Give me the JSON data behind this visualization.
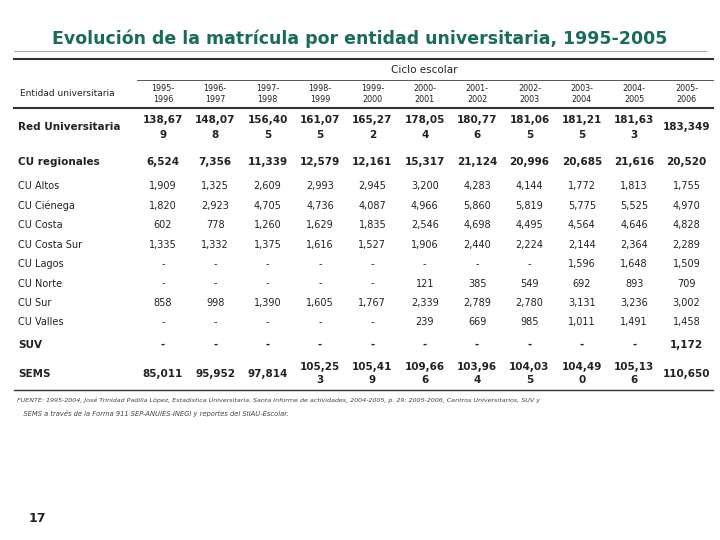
{
  "title": "Evolución de la matrícula por entidad universitaria, 1995-2005",
  "header_ciclo": "Ciclo escolar",
  "header_entidad": "Entidad universitaria",
  "col_headers": [
    "1995-\n1996",
    "1996-\n1997",
    "1997-\n1998",
    "1998-\n1999",
    "1999-\n2000",
    "2000-\n2001",
    "2001-\n2002",
    "2002-\n2003",
    "2003-\n2004",
    "2004-\n2005",
    "2005-\n2006"
  ],
  "rows": [
    {
      "name": "Red Universitaria",
      "bold": true,
      "values": [
        "138,67\n9",
        "148,07\n8",
        "156,40\n5",
        "161,07\n5",
        "165,27\n2",
        "178,05\n4",
        "180,77\n6",
        "181,06\n5",
        "181,21\n5",
        "181,63\n3",
        "183,349"
      ]
    },
    {
      "name": "CU regionales",
      "bold": true,
      "values": [
        "6,524",
        "7,356",
        "11,339",
        "12,579",
        "12,161",
        "15,317",
        "21,124",
        "20,996",
        "20,685",
        "21,616",
        "20,520"
      ]
    },
    {
      "name": "CU Altos",
      "bold": false,
      "values": [
        "1,909",
        "1,325",
        "2,609",
        "2,993",
        "2,945",
        "3,200",
        "4,283",
        "4,144",
        "1,772",
        "1,813",
        "1,755"
      ]
    },
    {
      "name": "CU Ciénega",
      "bold": false,
      "values": [
        "1,820",
        "2,923",
        "4,705",
        "4,736",
        "4,087",
        "4,966",
        "5,860",
        "5,819",
        "5,775",
        "5,525",
        "4,970"
      ]
    },
    {
      "name": "CU Costa",
      "bold": false,
      "values": [
        "602",
        "778",
        "1,260",
        "1,629",
        "1,835",
        "2,546",
        "4,698",
        "4,495",
        "4,564",
        "4,646",
        "4,828"
      ]
    },
    {
      "name": "CU Costa Sur",
      "bold": false,
      "values": [
        "1,335",
        "1,332",
        "1,375",
        "1,616",
        "1,527",
        "1,906",
        "2,440",
        "2,224",
        "2,144",
        "2,364",
        "2,289"
      ]
    },
    {
      "name": "CU Lagos",
      "bold": false,
      "values": [
        "-",
        "-",
        "-",
        "-",
        "-",
        "-",
        "-",
        "-",
        "1,596",
        "1,648",
        "1,509"
      ]
    },
    {
      "name": "CU Norte",
      "bold": false,
      "values": [
        "-",
        "-",
        "-",
        "-",
        "-",
        "121",
        "385",
        "549",
        "692",
        "893",
        "709"
      ]
    },
    {
      "name": "CU Sur",
      "bold": false,
      "values": [
        "858",
        "998",
        "1,390",
        "1,605",
        "1,767",
        "2,339",
        "2,789",
        "2,780",
        "3,131",
        "3,236",
        "3,002"
      ]
    },
    {
      "name": "CU Valles",
      "bold": false,
      "values": [
        "-",
        "-",
        "-",
        "-",
        "-",
        "239",
        "669",
        "985",
        "1,011",
        "1,491",
        "1,458"
      ]
    },
    {
      "name": "SUV",
      "bold": true,
      "values": [
        "-",
        "-",
        "-",
        "-",
        "-",
        "-",
        "-",
        "-",
        "-",
        "-",
        "1,172"
      ]
    },
    {
      "name": "SEMS",
      "bold": true,
      "values": [
        "85,011",
        "95,952",
        "97,814",
        "105,25\n3",
        "105,41\n9",
        "109,66\n6",
        "103,96\n4",
        "104,03\n5",
        "104,49\n0",
        "105,13\n6",
        "110,650"
      ]
    }
  ],
  "footnote1": "FUENTE: 1995-2004, José Trinidad Padilla López, Estadística Universitaria. Santa Informe de actividades, 2004-2005, p. 29; 2005-2006, Centros Universitarios, SUV y",
  "footnote2": "   SEMS a través de la Forma 911 SEP-ANUIES-INEGI y reportes del SIIAU-Escolar.",
  "page_num": "17",
  "title_color": "#1a6b5a",
  "teal_bar_color": "#1a7a6a",
  "bottom_bg_color": "#c8d8e0",
  "title_fontsize": 12.5,
  "bg_color": "#ffffff"
}
